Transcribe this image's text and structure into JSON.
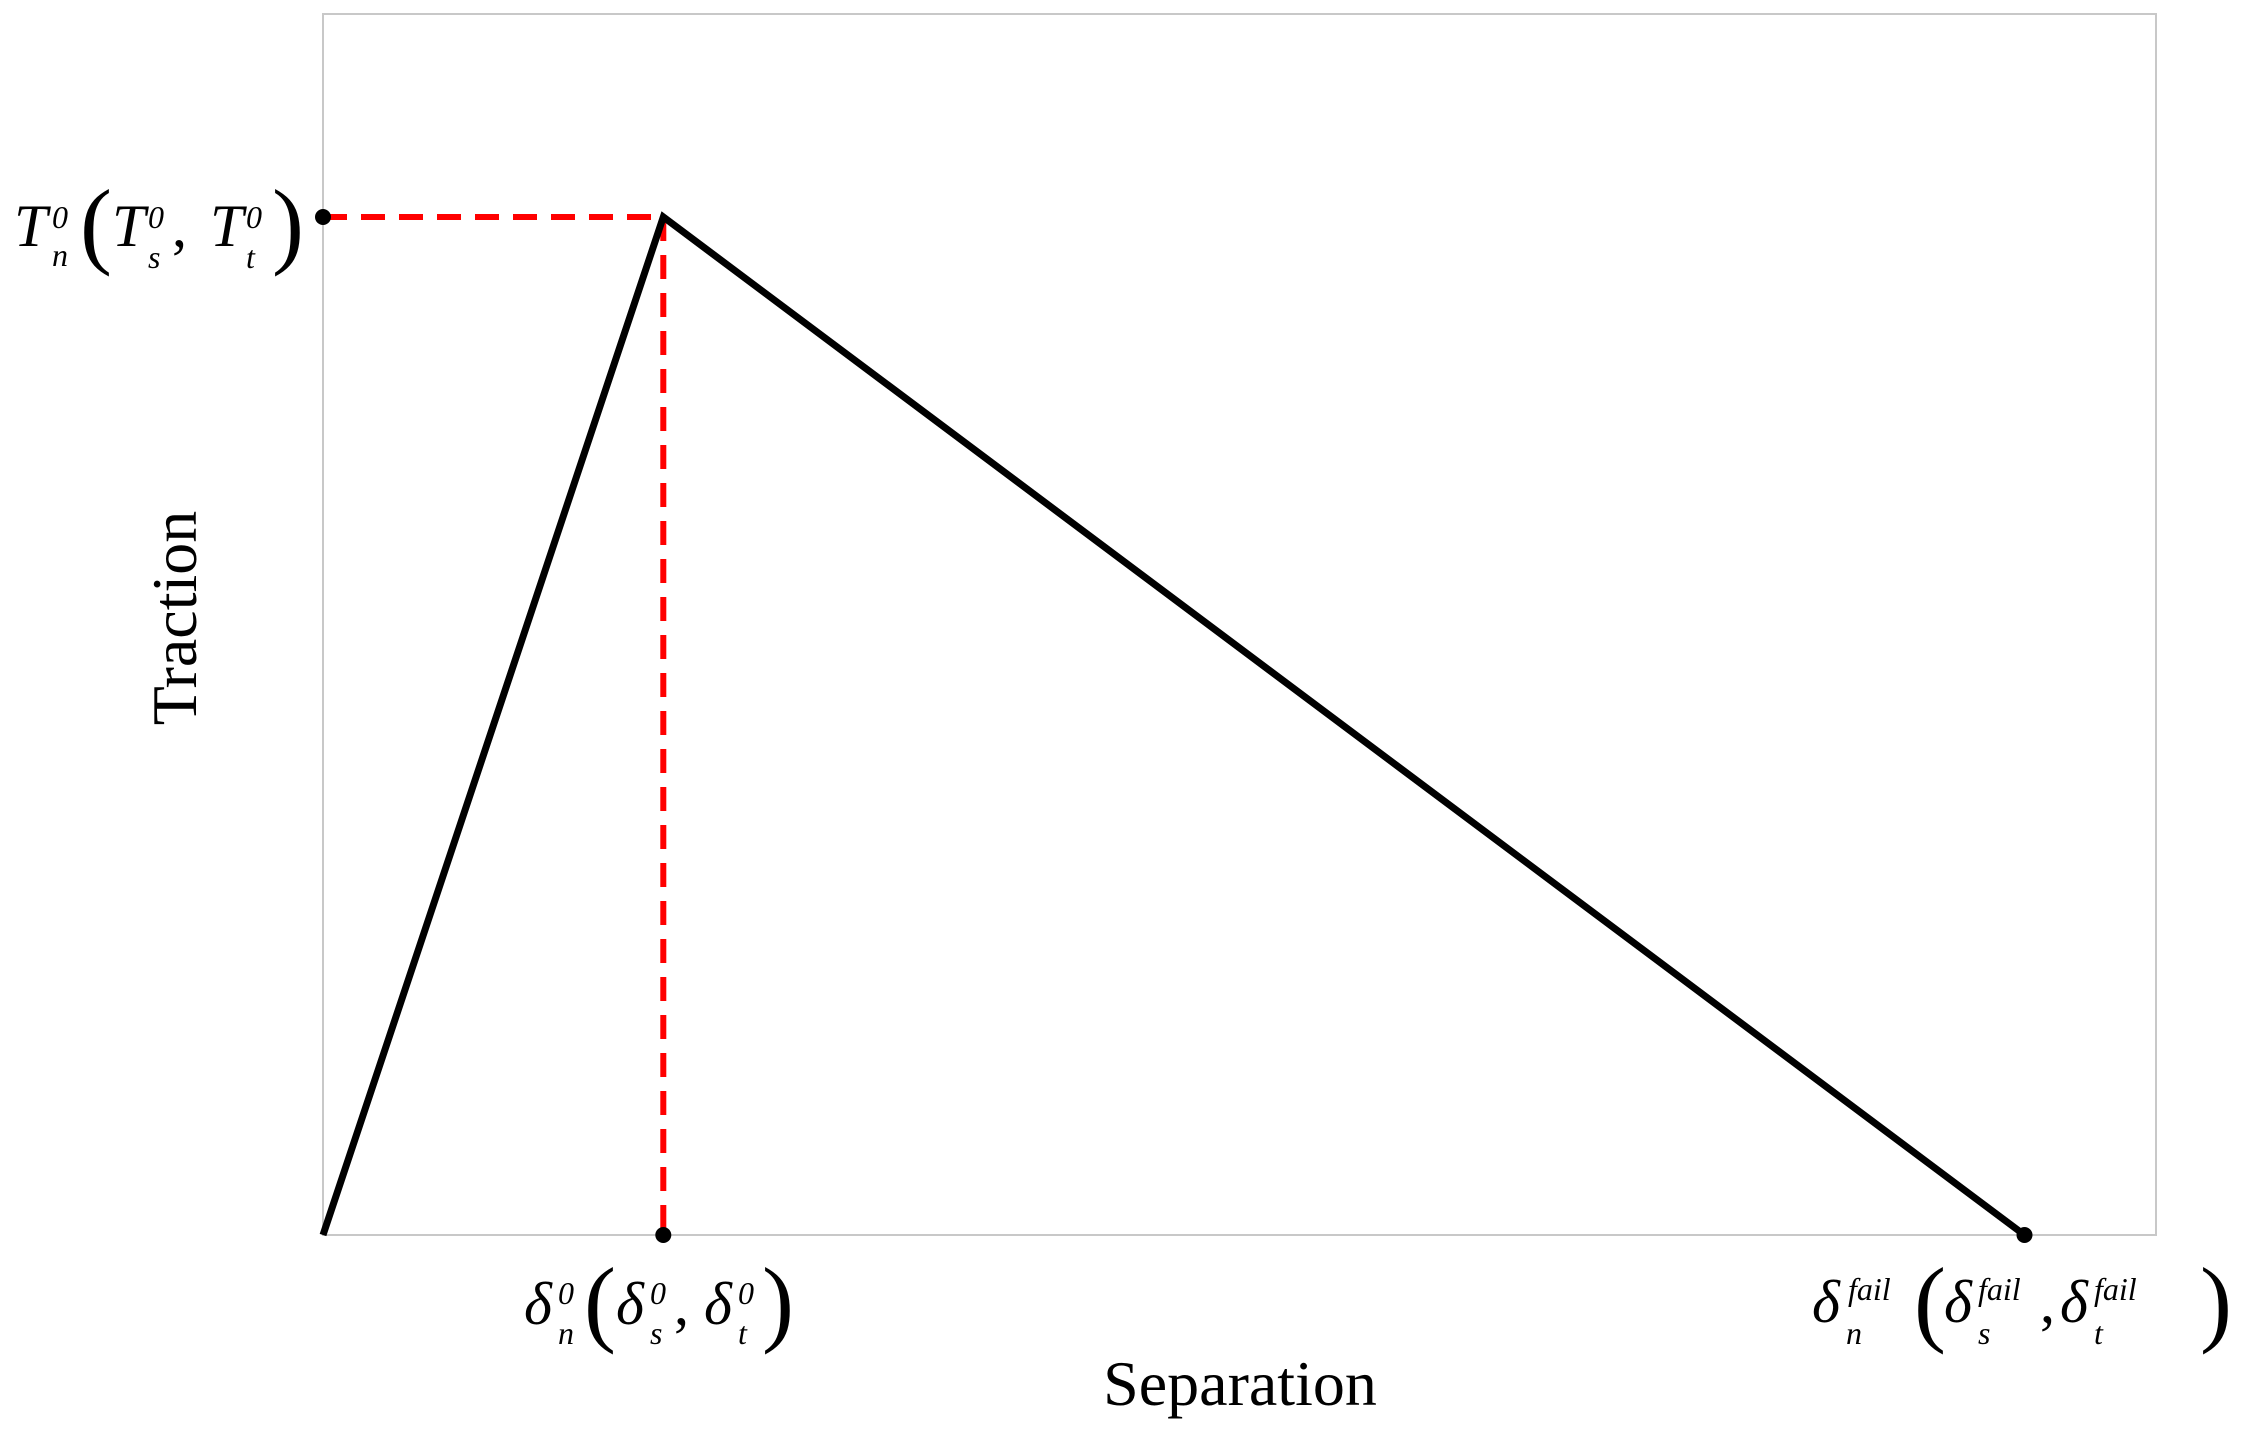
{
  "chart_data": {
    "type": "line",
    "xlabel": "Separation",
    "ylabel": "Traction",
    "grid": false,
    "line_color": "#000000",
    "guide_color": "#ff0000",
    "frame_color": "#c8c8c8",
    "series": [
      {
        "points": [
          {
            "x": 0,
            "y": 0
          },
          {
            "x": 1,
            "y": 1
          },
          {
            "x": 5,
            "y": 0
          }
        ]
      }
    ],
    "guides": [
      {
        "from": {
          "x": 0,
          "y": 1
        },
        "to": {
          "x": 1,
          "y": 1
        },
        "style": "dashed"
      },
      {
        "from": {
          "x": 1,
          "y": 1
        },
        "to": {
          "x": 1,
          "y": 0
        },
        "style": "dashed"
      }
    ],
    "markers": [
      {
        "name": "traction-peak-marker",
        "x": 0,
        "y": 1
      },
      {
        "name": "damage-onset-marker",
        "x": 1,
        "y": 0
      },
      {
        "name": "failure-marker",
        "x": 5,
        "y": 0
      }
    ],
    "xlim": [
      0,
      5.4
    ],
    "ylim": [
      0,
      1.2
    ],
    "tick_labels": {
      "y_peak": {
        "main": "T",
        "main_sub": "n",
        "main_sup": "0",
        "open": "(",
        "a": "T",
        "a_sub": "s",
        "a_sup": "0",
        "comma": ",",
        "b": "T",
        "b_sub": "t",
        "b_sup": "0",
        "close": ")"
      },
      "x_onset": {
        "main": "δ",
        "main_sub": "n",
        "main_sup": "0",
        "open": "(",
        "a": "δ",
        "a_sub": "s",
        "a_sup": "0",
        "comma": ",",
        "b": "δ",
        "b_sub": "t",
        "b_sup": "0",
        "close": ")"
      },
      "x_fail": {
        "main": "δ",
        "main_sub": "n",
        "main_sup": "fail",
        "open": "(",
        "a": "δ",
        "a_sub": "s",
        "a_sup": "fail",
        "comma": ",",
        "b": "δ",
        "b_sub": "t",
        "b_sup": "fail",
        "close": ")"
      }
    }
  }
}
